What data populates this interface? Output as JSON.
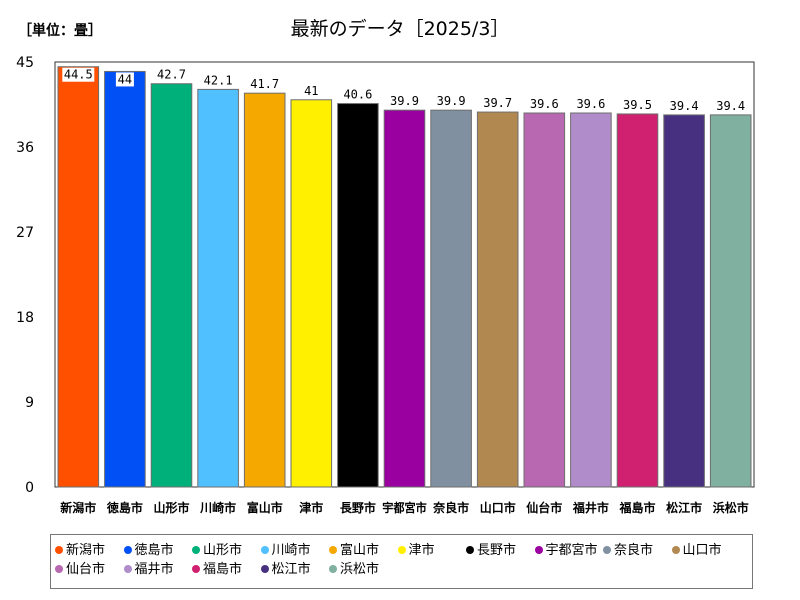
{
  "unit_label": "［単位：畳］",
  "chart_data": {
    "type": "bar",
    "title": "最新のデータ［2025/3］",
    "xlabel": "",
    "ylabel": "",
    "ylim": [
      0,
      45
    ],
    "yticks": [
      0,
      9,
      18,
      27,
      36,
      45
    ],
    "grid": false,
    "legend_position": "bottom",
    "categories": [
      "新潟市",
      "徳島市",
      "山形市",
      "川崎市",
      "富山市",
      "津市",
      "長野市",
      "宇都宮市",
      "奈良市",
      "山口市",
      "仙台市",
      "福井市",
      "福島市",
      "松江市",
      "浜松市"
    ],
    "values": [
      44.5,
      44,
      42.7,
      42.1,
      41.7,
      41,
      40.6,
      39.9,
      39.9,
      39.7,
      39.6,
      39.6,
      39.5,
      39.4,
      39.4
    ],
    "value_labels": [
      "44.5",
      "44",
      "42.7",
      "42.1",
      "41.7",
      "41",
      "40.6",
      "39.9",
      "39.9",
      "39.7",
      "39.6",
      "39.6",
      "39.5",
      "39.4",
      "39.4"
    ],
    "colors": [
      "#ff5000",
      "#0050f5",
      "#00b07a",
      "#50c0ff",
      "#f5a800",
      "#fff000",
      "#000000",
      "#9a00a0",
      "#8090a0",
      "#b08850",
      "#b868b0",
      "#b08cca",
      "#d02070",
      "#483080",
      "#80b0a0"
    ]
  }
}
